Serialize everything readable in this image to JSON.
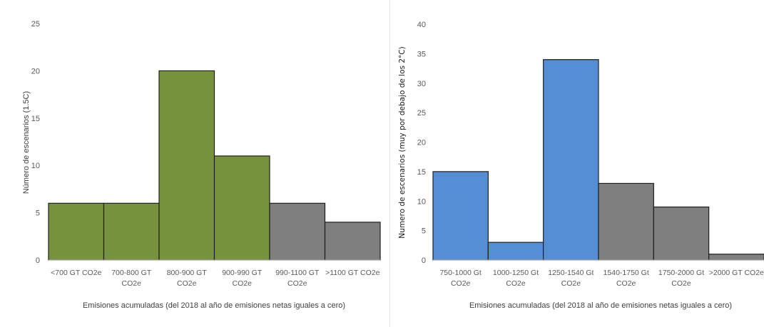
{
  "chart_data": [
    {
      "type": "bar",
      "categories": [
        [
          "<700 GT CO2e"
        ],
        [
          "700-800 GT",
          "CO2e"
        ],
        [
          "800-900 GT",
          "CO2e"
        ],
        [
          "900-990 GT",
          "CO2e"
        ],
        [
          "990-1100 GT",
          "CO2e"
        ],
        [
          ">1100 GT CO2e"
        ]
      ],
      "values": [
        6,
        6,
        20,
        11,
        6,
        4
      ],
      "bar_colors": [
        "#76923c",
        "#76923c",
        "#76923c",
        "#76923c",
        "#7f7f7f",
        "#7f7f7f"
      ],
      "ylim": [
        0,
        25
      ],
      "yticks": [
        0,
        5,
        10,
        15,
        20,
        25
      ],
      "ylabel": "Número de escenarios (1.5C)",
      "xlabel": "Emisiones acumuladas (del 2018 al año de emisiones netas iguales a cero)",
      "grid": false
    },
    {
      "type": "bar",
      "categories": [
        [
          "750-1000 Gt",
          "CO2e"
        ],
        [
          "1000-1250 Gt",
          "CO2e"
        ],
        [
          "1250-1540 Gt",
          "CO2e"
        ],
        [
          "1540-1750 Gt",
          "CO2e"
        ],
        [
          "1750-2000 Gt",
          "CO2e"
        ],
        [
          ">2000 GT CO2e"
        ]
      ],
      "values": [
        15,
        3,
        34,
        13,
        9,
        1
      ],
      "bar_colors": [
        "#558ed5",
        "#558ed5",
        "#558ed5",
        "#7f7f7f",
        "#7f7f7f",
        "#7f7f7f"
      ],
      "ylim": [
        0,
        40
      ],
      "yticks": [
        0,
        5,
        10,
        15,
        20,
        25,
        30,
        35,
        40
      ],
      "ylabel": "Numero de escenarios (muy por debajo de los 2°C)",
      "xlabel": "Emisiones acumuladas (del 2018 al año de emisiones netas iguales a cero)",
      "grid": false
    }
  ]
}
